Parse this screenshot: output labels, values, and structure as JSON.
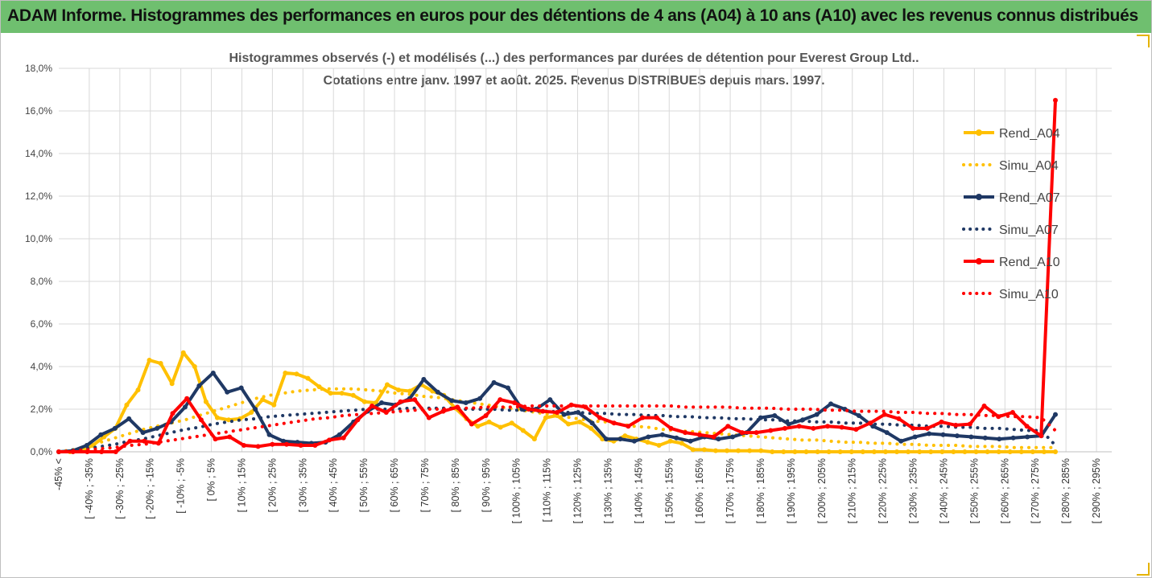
{
  "header": {
    "title": "ADAM Informe. Histogrammes des performances en euros pour des détentions de 4 ans (A04) à 10 ans (A10) avec les revenus connus distribués"
  },
  "colors": {
    "banner": "#6fbf6f",
    "a04": "#ffc000",
    "a07": "#1f3864",
    "a10": "#ff0000",
    "grid": "#d9d9d9",
    "corner": "#e5b300"
  },
  "chart_data": {
    "type": "line",
    "title": "Histogrammes observés (-) et modélisés (...) des performances par durées de détention pour Everest Group Ltd..",
    "subtitle": "Cotations entre janv. 1997 et août. 2025. Revenus DISTRIBUES depuis mars. 1997.",
    "ylim": [
      0,
      18
    ],
    "y_ticks": [
      "0,0%",
      "2,0%",
      "4,0%",
      "6,0%",
      "8,0%",
      "10,0%",
      "12,0%",
      "14,0%",
      "16,0%",
      "18,0%"
    ],
    "x_labels": [
      "-45% <",
      "[ -40% ; -35%",
      "[ -30% ; -25%",
      "[ -20% ; -15%",
      "[ -10% ; -5%",
      "[ 0% ; 5%",
      "[ 10% ; 15%",
      "[ 20% ; 25%",
      "[ 30% ; 35%",
      "[ 40% ; 45%",
      "[ 50% ; 55%",
      "[ 60% ; 65%",
      "[ 70% ; 75%",
      "[ 80% ; 85%",
      "[ 90% ; 95%",
      "[ 100% ; 105%",
      "[ 110% ; 115%",
      "[ 120% ; 125%",
      "[ 130% ; 135%",
      "[ 140% ; 145%",
      "[ 150% ; 155%",
      "[ 160% ; 165%",
      "[ 170% ; 175%",
      "[ 180% ; 185%",
      "[ 190% ; 195%",
      "[ 200% ; 205%",
      "[ 210% ; 215%",
      "[ 220% ; 225%",
      "[ 230% ; 235%",
      "[ 240% ; 245%",
      "[ 250% ; 255%",
      "[ 260% ; 265%",
      "[ 270% ; 275%",
      "[ 280% ; 285%",
      "[ 290% ; 295%"
    ],
    "legend_position": "right",
    "grid": true,
    "series": [
      {
        "name": "Rend_A04",
        "style": "solid",
        "color": "#ffc000",
        "values": [
          0,
          0,
          0.05,
          0.3,
          0.7,
          1.1,
          2.2,
          2.9,
          4.3,
          4.15,
          3.2,
          4.65,
          4.0,
          2.35,
          1.6,
          1.5,
          1.55,
          1.85,
          2.45,
          2.2,
          3.7,
          3.65,
          3.45,
          3.05,
          2.75,
          2.75,
          2.65,
          2.35,
          2.3,
          3.15,
          2.9,
          2.85,
          3.15,
          2.85,
          2.65,
          2.05,
          1.55,
          1.2,
          1.4,
          1.15,
          1.35,
          1.0,
          0.6,
          1.6,
          1.7,
          1.3,
          1.4,
          1.1,
          0.6,
          0.5,
          0.75,
          0.6,
          0.45,
          0.3,
          0.5,
          0.4,
          0.1,
          0.1,
          0.05,
          0.05,
          0.05,
          0.05,
          0.05,
          0,
          0,
          0,
          0,
          0,
          0,
          0,
          0,
          0,
          0,
          0,
          0,
          0,
          0,
          0,
          0,
          0,
          0,
          0,
          0,
          0,
          0,
          0,
          0,
          0,
          0
        ]
      },
      {
        "name": "Simu_A04",
        "style": "dotted",
        "color": "#ffc000",
        "values": [
          0,
          0.1,
          0.25,
          0.45,
          0.65,
          0.85,
          1.05,
          1.2,
          1.35,
          1.5,
          1.7,
          1.9,
          2.1,
          2.3,
          2.5,
          2.65,
          2.75,
          2.85,
          2.9,
          2.95,
          2.95,
          2.95,
          2.9,
          2.85,
          2.75,
          2.7,
          2.6,
          2.55,
          2.45,
          2.35,
          2.25,
          2.15,
          2.05,
          1.95,
          1.85,
          1.75,
          1.65,
          1.55,
          1.45,
          1.4,
          1.3,
          1.2,
          1.15,
          1.05,
          1.0,
          0.95,
          0.9,
          0.85,
          0.8,
          0.75,
          0.7,
          0.65,
          0.6,
          0.55,
          0.55,
          0.5,
          0.45,
          0.45,
          0.4,
          0.4,
          0.35,
          0.35,
          0.3,
          0.3,
          0.3,
          0.25,
          0.25,
          0.25,
          0.2,
          0.2,
          0.2,
          0.2
        ]
      },
      {
        "name": "Rend_A07",
        "style": "solid",
        "color": "#1f3864",
        "values": [
          0,
          0.05,
          0.3,
          0.8,
          1.1,
          1.55,
          0.9,
          1.1,
          1.4,
          2.1,
          3.1,
          3.7,
          2.8,
          3.0,
          2.0,
          0.8,
          0.5,
          0.45,
          0.4,
          0.45,
          0.8,
          1.4,
          1.9,
          2.3,
          2.2,
          2.5,
          3.4,
          2.8,
          2.4,
          2.3,
          2.5,
          3.25,
          3.0,
          2.0,
          2.0,
          2.45,
          1.75,
          1.85,
          1.35,
          0.6,
          0.6,
          0.5,
          0.7,
          0.8,
          0.65,
          0.5,
          0.7,
          0.6,
          0.7,
          0.9,
          1.6,
          1.7,
          1.3,
          1.5,
          1.75,
          2.25,
          2.0,
          1.7,
          1.2,
          0.9,
          0.5,
          0.7,
          0.85,
          0.8,
          0.75,
          0.7,
          0.65,
          0.6,
          0.65,
          0.7,
          0.75,
          1.75
        ]
      },
      {
        "name": "Simu_A07",
        "style": "dotted",
        "color": "#1f3864",
        "values": [
          0,
          0.05,
          0.15,
          0.25,
          0.35,
          0.5,
          0.6,
          0.75,
          0.9,
          1.05,
          1.15,
          1.3,
          1.4,
          1.5,
          1.55,
          1.65,
          1.7,
          1.75,
          1.8,
          1.85,
          1.9,
          1.95,
          2.0,
          2.0,
          2.0,
          2.05,
          2.05,
          2.05,
          2.05,
          2.0,
          2.0,
          2.0,
          1.95,
          1.95,
          1.9,
          1.9,
          1.85,
          1.85,
          1.8,
          1.8,
          1.75,
          1.75,
          1.7,
          1.7,
          1.65,
          1.65,
          1.6,
          1.6,
          1.55,
          1.55,
          1.5,
          1.5,
          1.45,
          1.45,
          1.4,
          1.4,
          1.35,
          1.35,
          1.3,
          1.3,
          1.25,
          1.25,
          1.2,
          1.2,
          1.15,
          1.15,
          1.1,
          1.1,
          1.05,
          1.0,
          1.0,
          0.3
        ]
      },
      {
        "name": "Rend_A10",
        "style": "solid",
        "color": "#ff0000",
        "values": [
          0,
          0,
          0,
          0,
          0,
          0.5,
          0.5,
          0.4,
          1.8,
          2.5,
          1.5,
          0.6,
          0.7,
          0.3,
          0.25,
          0.35,
          0.35,
          0.3,
          0.3,
          0.55,
          0.65,
          1.5,
          2.15,
          1.85,
          2.35,
          2.45,
          1.6,
          1.9,
          2.1,
          1.3,
          1.7,
          2.45,
          2.3,
          2.0,
          1.9,
          1.85,
          2.2,
          2.1,
          1.6,
          1.35,
          1.2,
          1.6,
          1.6,
          1.1,
          0.9,
          0.8,
          0.7,
          1.2,
          0.9,
          0.9,
          1.0,
          1.1,
          1.2,
          1.1,
          1.2,
          1.15,
          1.05,
          1.35,
          1.75,
          1.55,
          1.1,
          1.1,
          1.4,
          1.25,
          1.3,
          2.15,
          1.65,
          1.85,
          1.2,
          0.75,
          16.5
        ]
      },
      {
        "name": "Simu_A10",
        "style": "dotted",
        "color": "#ff0000",
        "values": [
          0,
          0.05,
          0.1,
          0.15,
          0.2,
          0.3,
          0.35,
          0.45,
          0.55,
          0.65,
          0.75,
          0.85,
          0.95,
          1.05,
          1.15,
          1.25,
          1.35,
          1.45,
          1.55,
          1.6,
          1.7,
          1.75,
          1.8,
          1.85,
          1.9,
          1.95,
          2.0,
          2.0,
          2.05,
          2.05,
          2.1,
          2.1,
          2.1,
          2.15,
          2.15,
          2.15,
          2.15,
          2.15,
          2.15,
          2.15,
          2.15,
          2.15,
          2.15,
          2.15,
          2.1,
          2.1,
          2.1,
          2.1,
          2.05,
          2.05,
          2.05,
          2.0,
          2.0,
          2.0,
          1.95,
          1.95,
          1.9,
          1.9,
          1.9,
          1.85,
          1.85,
          1.8,
          1.8,
          1.75,
          1.75,
          1.7,
          1.7,
          1.65,
          1.65,
          1.6,
          1.0
        ]
      }
    ]
  }
}
